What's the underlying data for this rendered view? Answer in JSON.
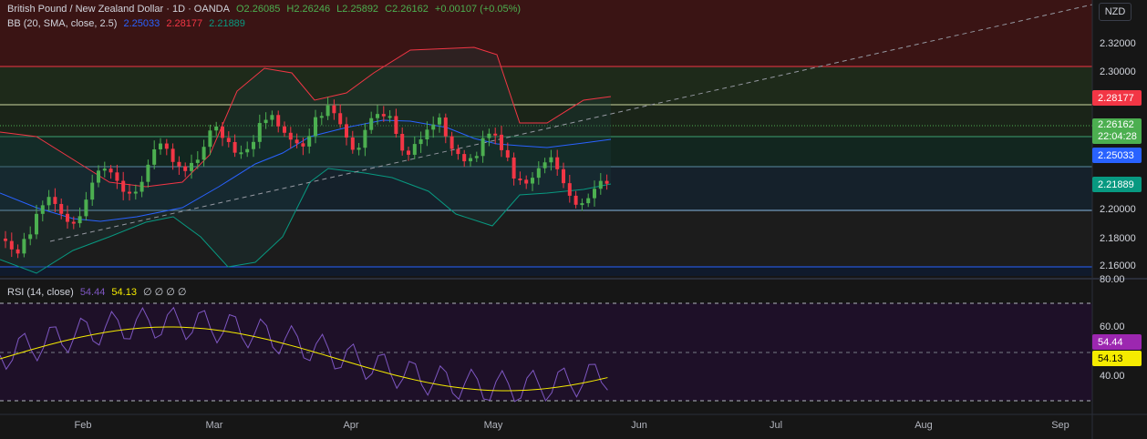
{
  "header": {
    "symbol": "British Pound / New Zealand Dollar · 1D · OANDA",
    "open": "O2.26085",
    "high": "H2.26246",
    "low": "L2.25892",
    "close": "C2.26162",
    "change": "+0.00107 (+0.05%)"
  },
  "bb_legend": {
    "label": "BB (20, SMA, close, 2.5)",
    "basis": "2.25033",
    "upper": "2.28177",
    "lower": "2.21889"
  },
  "rsi_legend": {
    "label": "RSI (14, close)",
    "rsi": "54.44",
    "ma": "54.13",
    "extra": "∅ ∅ ∅ ∅"
  },
  "currency": "NZD",
  "price_axis": {
    "labels": [
      "2.32000",
      "2.30000",
      "2.28177",
      "2.26162",
      "22:04:28",
      "2.25033",
      "2.21889",
      "2.20000",
      "2.18000",
      "2.16000"
    ]
  },
  "rsi_axis": {
    "labels": [
      "80.00",
      "60.00",
      "54.44",
      "54.13",
      "40.00"
    ]
  },
  "time_axis": {
    "labels": [
      "Feb",
      "Mar",
      "Apr",
      "May",
      "Jun",
      "Jul",
      "Aug",
      "Sep"
    ]
  },
  "colors": {
    "up": "#4caf50",
    "down": "#f23645",
    "bb_basis": "#2962ff",
    "bb_upper": "#f23645",
    "bb_lower": "#089981",
    "rsi": "#7e57c2",
    "rsi_ma": "#f5eb00",
    "price_tag": "#4caf50"
  }
}
